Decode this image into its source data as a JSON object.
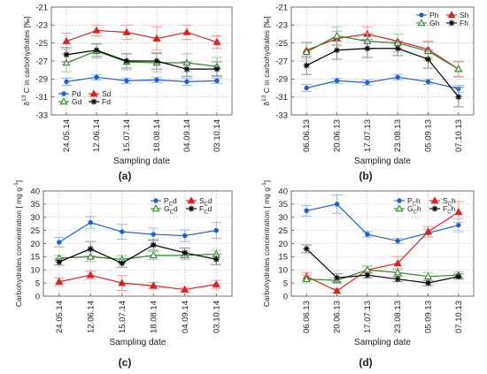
{
  "colors": {
    "Pd": "#1f5fd6",
    "Sd": "#e02020",
    "Gd": "#2a8a2a",
    "Fd": "#000000",
    "Ph": "#1f5fd6",
    "Sh": "#e02020",
    "Gh": "#2a8a2a",
    "Fh": "#000000",
    "P": "#1f5fd6",
    "S": "#b5552a",
    "G": "#2a8a2a",
    "F": "#000000",
    "errorbar_tone": "pastel"
  },
  "chart_data": [
    {
      "id": "a",
      "type": "line",
      "caption": "(a)",
      "xlabel": "Sampling date",
      "ylabel_parts": [
        "δ",
        "13",
        " C in carbohydrates [‰]"
      ],
      "categories": [
        "24.05.14",
        "12.06.14",
        "15.07.14",
        "18.08.14",
        "04.09.14",
        "03.10.14"
      ],
      "ylim": [
        -33,
        -21
      ],
      "yticks": [
        -33,
        -31,
        -29,
        -27,
        -25,
        -23,
        -21
      ],
      "grid": true,
      "legend": {
        "placement": "bottom-left",
        "columns": 2
      },
      "series": [
        {
          "name": "Pd",
          "marker": "dot",
          "values": [
            -29.3,
            -28.8,
            -29.2,
            -29.1,
            -29.3,
            -29.2
          ],
          "errors": [
            0.4,
            0.3,
            0.3,
            0.3,
            0.4,
            0.3
          ]
        },
        {
          "name": "Sd",
          "marker": "triangle-filled",
          "values": [
            -24.8,
            -23.6,
            -23.8,
            -24.5,
            -23.8,
            -24.9
          ],
          "errors": [
            0.9,
            0.6,
            0.8,
            1.3,
            0.8,
            0.7
          ]
        },
        {
          "name": "Gd",
          "marker": "triangle-open",
          "values": [
            -27.2,
            -25.9,
            -27.1,
            -27.2,
            -27.2,
            -27.6
          ],
          "errors": [
            1.0,
            0.8,
            0.9,
            1.0,
            1.0,
            1.0
          ]
        },
        {
          "name": "Fd",
          "marker": "star",
          "values": [
            -26.3,
            -25.8,
            -27.0,
            -27.0,
            -27.9,
            -27.9
          ],
          "errors": [
            0.8,
            0.7,
            0.8,
            0.9,
            0.8,
            0.8
          ]
        }
      ]
    },
    {
      "id": "b",
      "type": "line",
      "caption": "(b)",
      "xlabel": "Sampling date",
      "ylabel_parts": [
        "δ",
        "13",
        " C in carbohydrates [‰]"
      ],
      "categories": [
        "06.06.13",
        "20.06.13",
        "17.07.13",
        "23.08.13",
        "05.09.13",
        "07.10.13"
      ],
      "ylim": [
        -33,
        -21
      ],
      "yticks": [
        -33,
        -31,
        -29,
        -27,
        -25,
        -23,
        -21
      ],
      "grid": true,
      "legend": {
        "placement": "top-right",
        "columns": 2
      },
      "series": [
        {
          "name": "Ph",
          "marker": "dot",
          "values": [
            -30.0,
            -29.2,
            -29.4,
            -28.8,
            -29.3,
            -30.1
          ],
          "errors": [
            0.4,
            0.3,
            0.3,
            0.3,
            0.3,
            0.4
          ]
        },
        {
          "name": "Sh",
          "marker": "triangle-filled",
          "values": [
            -25.8,
            -24.5,
            -24.0,
            -24.8,
            -25.7,
            -27.9
          ],
          "errors": [
            0.9,
            0.8,
            0.8,
            0.8,
            0.9,
            0.8
          ]
        },
        {
          "name": "Gh",
          "marker": "triangle-open",
          "values": [
            -26.0,
            -24.2,
            -24.8,
            -25.0,
            -25.9,
            -27.9
          ],
          "errors": [
            1.0,
            1.0,
            0.9,
            1.0,
            1.0,
            0.9
          ]
        },
        {
          "name": "Fh",
          "marker": "star",
          "values": [
            -27.5,
            -25.8,
            -25.6,
            -25.6,
            -26.8,
            -31.0
          ],
          "errors": [
            1.0,
            1.0,
            1.0,
            0.8,
            1.0,
            1.1
          ]
        }
      ]
    },
    {
      "id": "c",
      "type": "line",
      "caption": "(c)",
      "xlabel": "Sampling date",
      "ylabel_parts": [
        "Carbohydrates concentration [ mg g",
        "-1",
        "]"
      ],
      "categories": [
        "24.05.14",
        "12.06.14",
        "15.07.14",
        "18.08.14",
        "04.09.14",
        "03.10.14"
      ],
      "ylim": [
        0,
        40
      ],
      "yticks": [
        0,
        5,
        10,
        15,
        20,
        25,
        30,
        35,
        40
      ],
      "grid": true,
      "legend": {
        "placement": "top-right",
        "columns": 2
      },
      "series": [
        {
          "name": "P",
          "sub": "C",
          "suffix": "d",
          "marker": "dot",
          "values": [
            20.5,
            28.0,
            24.5,
            23.5,
            23.0,
            25.0
          ],
          "errors": [
            1.8,
            2.2,
            2.8,
            2.4,
            2.2,
            3.0
          ]
        },
        {
          "name": "S",
          "sub": "C",
          "suffix": "d",
          "marker": "triangle-filled",
          "values": [
            5.5,
            8.0,
            5.0,
            4.0,
            2.5,
            4.5
          ],
          "errors": [
            1.5,
            1.5,
            2.8,
            1.2,
            0.8,
            1.5
          ]
        },
        {
          "name": "G",
          "sub": "C",
          "suffix": "d",
          "marker": "triangle-open",
          "values": [
            14.5,
            15.0,
            14.0,
            15.5,
            15.5,
            16.0
          ],
          "errors": [
            1.0,
            1.8,
            1.5,
            1.5,
            1.5,
            1.5
          ]
        },
        {
          "name": "F",
          "sub": "C",
          "suffix": "d",
          "marker": "star",
          "values": [
            13.0,
            18.0,
            12.5,
            19.5,
            16.5,
            14.0
          ],
          "errors": [
            1.2,
            2.8,
            1.5,
            2.0,
            1.8,
            2.0
          ]
        }
      ]
    },
    {
      "id": "d",
      "type": "line",
      "caption": "(d)",
      "xlabel": "Sampling date",
      "ylabel_parts": [
        "Carbohydrates concentration [ mg g",
        "-1",
        "]"
      ],
      "categories": [
        "06.06.13",
        "20.06.13",
        "17.07.13",
        "23.08.13",
        "05.09.13",
        "07.10.13"
      ],
      "ylim": [
        0,
        40
      ],
      "yticks": [
        0,
        5,
        10,
        15,
        20,
        25,
        30,
        35,
        40
      ],
      "grid": true,
      "legend": {
        "placement": "top-right",
        "columns": 2
      },
      "series": [
        {
          "name": "P",
          "sub": "C",
          "suffix": "h",
          "marker": "dot",
          "values": [
            32.5,
            35.0,
            23.5,
            21.0,
            24.0,
            27.0
          ],
          "errors": [
            2.0,
            3.5,
            1.0,
            1.0,
            1.5,
            2.5
          ]
        },
        {
          "name": "S",
          "sub": "C",
          "suffix": "h",
          "marker": "triangle-filled",
          "values": [
            7.5,
            2.0,
            10.0,
            12.5,
            24.5,
            32.0
          ],
          "errors": [
            1.5,
            0.8,
            1.5,
            2.5,
            2.0,
            4.0
          ]
        },
        {
          "name": "G",
          "sub": "C",
          "suffix": "h",
          "marker": "triangle-open",
          "values": [
            6.5,
            6.0,
            10.0,
            9.0,
            7.5,
            8.0
          ],
          "errors": [
            1.5,
            1.0,
            1.5,
            1.5,
            1.5,
            1.2
          ]
        },
        {
          "name": "F",
          "sub": "C",
          "suffix": "h",
          "marker": "star",
          "values": [
            18.0,
            7.0,
            8.0,
            6.5,
            5.0,
            7.5
          ],
          "errors": [
            1.5,
            1.5,
            1.0,
            1.0,
            1.0,
            1.0
          ]
        }
      ]
    }
  ]
}
